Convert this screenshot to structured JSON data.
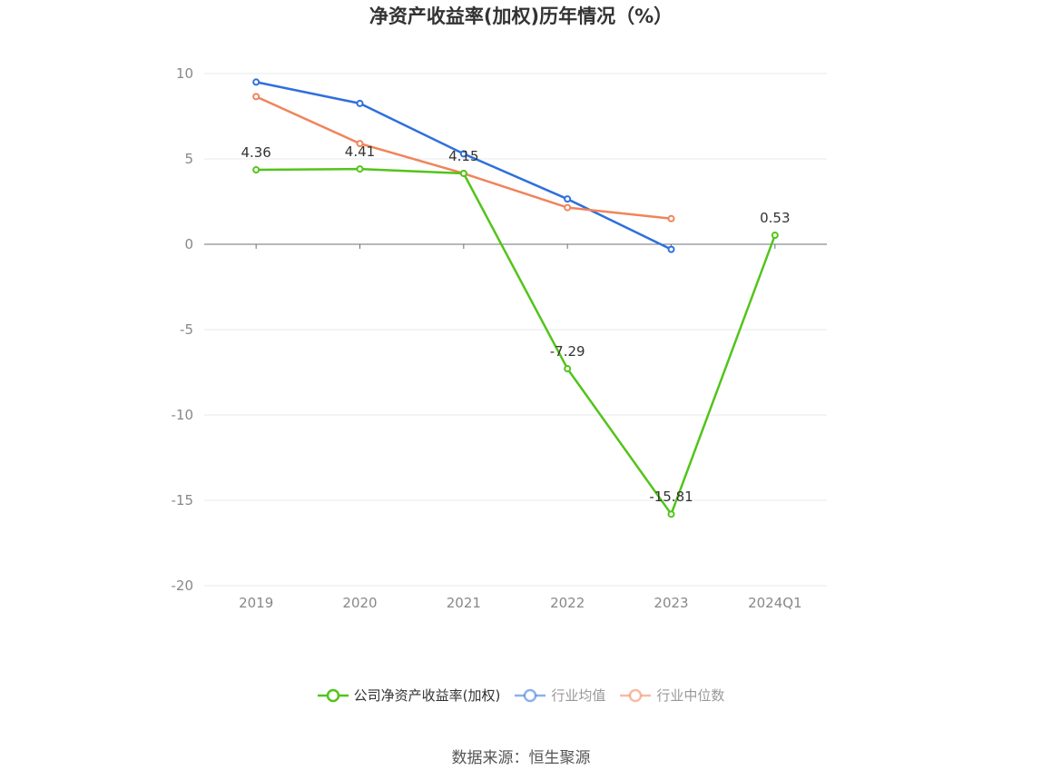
{
  "chart_data": {
    "type": "line",
    "title": "净资产收益率(加权)历年情况（%）",
    "categories": [
      "2019",
      "2020",
      "2021",
      "2022",
      "2023",
      "2024Q1"
    ],
    "ylim": [
      -20,
      10
    ],
    "yticks": [
      10,
      5,
      0,
      -5,
      -10,
      -15,
      -20
    ],
    "grid": true,
    "legend_position": "bottom",
    "series": [
      {
        "name": "公司净资产收益率(加权)",
        "values": [
          4.36,
          4.41,
          4.15,
          -7.29,
          -15.81,
          0.53
        ],
        "color": "#52c41a",
        "labels": [
          "4.36",
          "4.41",
          "4.15",
          "-7.29",
          "-15.81",
          "0.53"
        ]
      },
      {
        "name": "行业均值",
        "values": [
          9.5,
          8.25,
          5.3,
          2.65,
          -0.3,
          null
        ],
        "color": "#2f6fde"
      },
      {
        "name": "行业中位数",
        "values": [
          8.65,
          5.9,
          4.15,
          2.15,
          1.5,
          null
        ],
        "color": "#f0845a"
      }
    ]
  },
  "legend": {
    "items": [
      {
        "label": "公司净资产收益率(加权)",
        "color": "#52c41a",
        "text_color": "#333333"
      },
      {
        "label": "行业均值",
        "color": "#2f6fde",
        "text_color": "#999999"
      },
      {
        "label": "行业中位数",
        "color": "#f0845a",
        "text_color": "#999999"
      }
    ]
  },
  "source": "数据来源：恒生聚源"
}
